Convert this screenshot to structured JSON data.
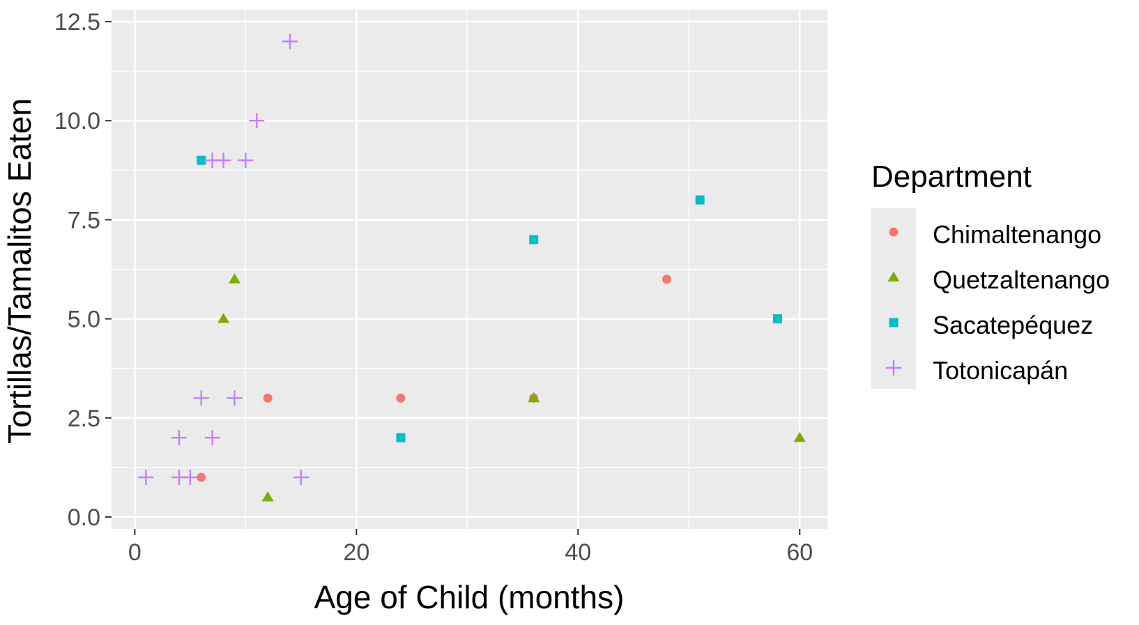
{
  "chart_data": {
    "type": "scatter",
    "title": "",
    "xlabel": "Age of Child (months)",
    "ylabel": "Tortillas/Tamalitos Eaten",
    "xlim": [
      -2.1,
      62.5
    ],
    "ylim": [
      -0.3,
      12.8
    ],
    "xticks": [
      0,
      20,
      40,
      60
    ],
    "yticks": [
      0.0,
      2.5,
      5.0,
      7.5,
      10.0,
      12.5
    ],
    "xtick_labels": [
      "0",
      "20",
      "40",
      "60"
    ],
    "ytick_labels": [
      "0.0",
      "2.5",
      "5.0",
      "7.5",
      "10.0",
      "12.5"
    ],
    "grid": true,
    "panel_background": "#ebebeb",
    "legend": {
      "title": "Department",
      "position": "right"
    },
    "series": [
      {
        "name": "Chimaltenango",
        "marker": "circle",
        "color": "#f8766d",
        "points": [
          [
            6,
            1
          ],
          [
            12,
            3
          ],
          [
            24,
            3
          ],
          [
            36,
            3
          ],
          [
            48,
            6
          ]
        ]
      },
      {
        "name": "Quetzaltenango",
        "marker": "triangle",
        "color": "#7cae00",
        "points": [
          [
            8,
            5
          ],
          [
            9,
            6
          ],
          [
            12,
            0.5
          ],
          [
            36,
            3
          ],
          [
            60,
            2
          ]
        ]
      },
      {
        "name": "Sacatepéquez",
        "marker": "square",
        "color": "#00bfc4",
        "points": [
          [
            6,
            9
          ],
          [
            24,
            2
          ],
          [
            36,
            7
          ],
          [
            51,
            8
          ],
          [
            58,
            5
          ]
        ]
      },
      {
        "name": "Totonicapán",
        "marker": "plus",
        "color": "#c77cff",
        "points": [
          [
            1,
            1
          ],
          [
            4,
            1
          ],
          [
            5,
            1
          ],
          [
            4,
            2
          ],
          [
            7,
            2
          ],
          [
            6,
            3
          ],
          [
            9,
            3
          ],
          [
            7,
            9
          ],
          [
            8,
            9
          ],
          [
            10,
            9
          ],
          [
            11,
            10
          ],
          [
            14,
            12
          ],
          [
            15,
            1
          ]
        ]
      }
    ]
  }
}
